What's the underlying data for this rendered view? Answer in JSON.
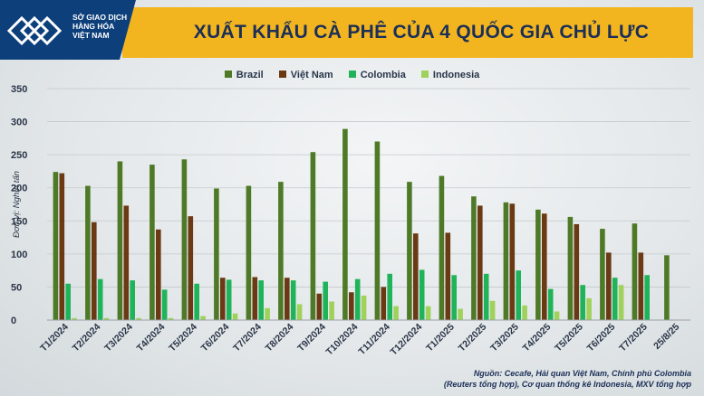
{
  "header": {
    "logo_lines": [
      "SỞ GIAO DỊCH",
      "HÀNG HÓA",
      "VIỆT NAM"
    ],
    "title": "XUẤT KHẨU CÀ PHÊ CỦA 4 QUỐC GIA CHỦ LỰC"
  },
  "colors": {
    "header_yellow": "#f3b51f",
    "logo_blue": "#0d3f7a",
    "title_text": "#1b2f57"
  },
  "source": {
    "line1": "Nguồn: Cecafe, Hải quan Việt Nam, Chính phủ Colombia",
    "line2": "(Reuters tổng hợp), Cơ quan thống kê Indonesia, MXV tổng hợp"
  },
  "chart_data": {
    "type": "bar",
    "ylabel": "Đơn vị: Nghìn tấn",
    "ylim": [
      0,
      350
    ],
    "yticks": [
      0,
      50,
      100,
      150,
      200,
      250,
      300,
      350
    ],
    "grid": true,
    "legend_position": "top-center",
    "categories": [
      "T1/2024",
      "T2/2024",
      "T3/2024",
      "T4/2024",
      "T5/2024",
      "T6/2024",
      "T7/2024",
      "T8/2024",
      "T9/2024",
      "T10/2024",
      "T11/2024",
      "T12/2024",
      "T1/2025",
      "T2/2025",
      "T3/2025",
      "T4/2025",
      "T5/2025",
      "T6/2025",
      "T7/2025",
      "25/8/25"
    ],
    "series": [
      {
        "name": "Brazil",
        "color": "#4e7a27",
        "values": [
          224,
          203,
          240,
          235,
          243,
          199,
          203,
          209,
          254,
          289,
          270,
          209,
          218,
          187,
          178,
          167,
          156,
          138,
          146,
          98
        ]
      },
      {
        "name": "Việt Nam",
        "color": "#6b3a14",
        "values": [
          222,
          148,
          173,
          137,
          157,
          64,
          65,
          64,
          40,
          42,
          50,
          131,
          132,
          173,
          176,
          161,
          145,
          102,
          102,
          null
        ]
      },
      {
        "name": "Colombia",
        "color": "#1fb35a",
        "values": [
          55,
          62,
          60,
          46,
          55,
          61,
          60,
          60,
          58,
          62,
          70,
          76,
          68,
          70,
          75,
          47,
          53,
          64,
          68,
          null
        ]
      },
      {
        "name": "Indonesia",
        "color": "#9fd15b",
        "values": [
          3,
          3,
          3,
          3,
          6,
          10,
          18,
          24,
          28,
          37,
          21,
          21,
          17,
          29,
          22,
          13,
          33,
          53,
          null,
          null
        ]
      }
    ]
  }
}
